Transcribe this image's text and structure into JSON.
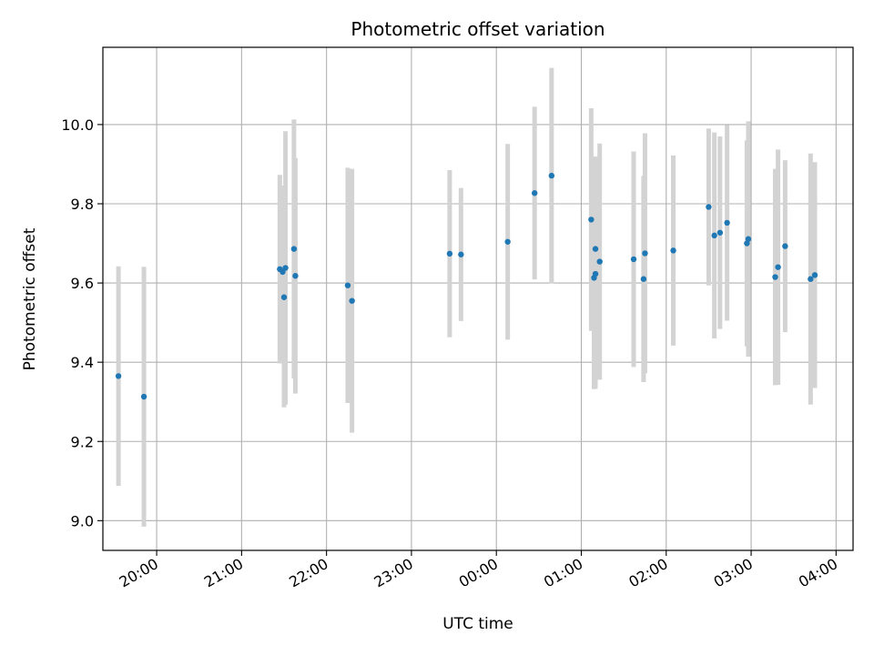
{
  "chart_data": {
    "type": "scatter",
    "title": "Photometric offset variation",
    "xlabel": "UTC time",
    "ylabel": "Photometric offset",
    "x_axis_kind": "time",
    "xlim": [
      "19:22",
      "04:12"
    ],
    "ylim": [
      8.925,
      10.195
    ],
    "x_ticks": [
      "20:00",
      "21:00",
      "22:00",
      "23:00",
      "00:00",
      "01:00",
      "02:00",
      "03:00",
      "04:00"
    ],
    "y_ticks": [
      9.0,
      9.2,
      9.4,
      9.6,
      9.8,
      10.0
    ],
    "y_tick_labels": [
      "9.0",
      "9.2",
      "9.4",
      "9.6",
      "9.8",
      "10.0"
    ],
    "grid": true,
    "colors": {
      "point": "#1f77b4",
      "errorbar": "#d3d3d3",
      "grid": "#b0b0b0"
    },
    "points": [
      {
        "x": "19:33",
        "y": 9.365,
        "yerr": 0.277
      },
      {
        "x": "19:51",
        "y": 9.313,
        "yerr": 0.328
      },
      {
        "x": "21:27",
        "y": 9.635,
        "yerr": 0.238
      },
      {
        "x": "21:29",
        "y": 9.628,
        "yerr": 0.218
      },
      {
        "x": "21:30",
        "y": 9.564,
        "yerr": 0.278
      },
      {
        "x": "21:31",
        "y": 9.638,
        "yerr": 0.345
      },
      {
        "x": "21:37",
        "y": 9.686,
        "yerr": 0.327
      },
      {
        "x": "21:38",
        "y": 9.618,
        "yerr": 0.297
      },
      {
        "x": "22:15",
        "y": 9.594,
        "yerr": 0.297
      },
      {
        "x": "22:18",
        "y": 9.555,
        "yerr": 0.333
      },
      {
        "x": "23:27",
        "y": 9.674,
        "yerr": 0.211
      },
      {
        "x": "23:35",
        "y": 9.672,
        "yerr": 0.168
      },
      {
        "x": "00:08",
        "y": 9.704,
        "yerr": 0.247
      },
      {
        "x": "00:27",
        "y": 9.827,
        "yerr": 0.218
      },
      {
        "x": "00:39",
        "y": 9.871,
        "yerr": 0.272
      },
      {
        "x": "01:07",
        "y": 9.76,
        "yerr": 0.281
      },
      {
        "x": "01:09",
        "y": 9.613,
        "yerr": 0.281
      },
      {
        "x": "01:10",
        "y": 9.623,
        "yerr": 0.29
      },
      {
        "x": "01:10",
        "y": 9.686,
        "yerr": 0.233
      },
      {
        "x": "01:13",
        "y": 9.654,
        "yerr": 0.298
      },
      {
        "x": "01:37",
        "y": 9.66,
        "yerr": 0.272
      },
      {
        "x": "01:44",
        "y": 9.61,
        "yerr": 0.26
      },
      {
        "x": "01:45",
        "y": 9.675,
        "yerr": 0.303
      },
      {
        "x": "02:05",
        "y": 9.682,
        "yerr": 0.24
      },
      {
        "x": "02:30",
        "y": 9.792,
        "yerr": 0.198
      },
      {
        "x": "02:34",
        "y": 9.72,
        "yerr": 0.26
      },
      {
        "x": "02:38",
        "y": 9.727,
        "yerr": 0.243
      },
      {
        "x": "02:43",
        "y": 9.752,
        "yerr": 0.247
      },
      {
        "x": "02:57",
        "y": 9.7,
        "yerr": 0.26
      },
      {
        "x": "02:58",
        "y": 9.711,
        "yerr": 0.297
      },
      {
        "x": "03:17",
        "y": 9.615,
        "yerr": 0.273
      },
      {
        "x": "03:19",
        "y": 9.64,
        "yerr": 0.297
      },
      {
        "x": "03:24",
        "y": 9.693,
        "yerr": 0.217
      },
      {
        "x": "03:42",
        "y": 9.61,
        "yerr": 0.317
      },
      {
        "x": "03:45",
        "y": 9.62,
        "yerr": 0.285
      }
    ]
  }
}
